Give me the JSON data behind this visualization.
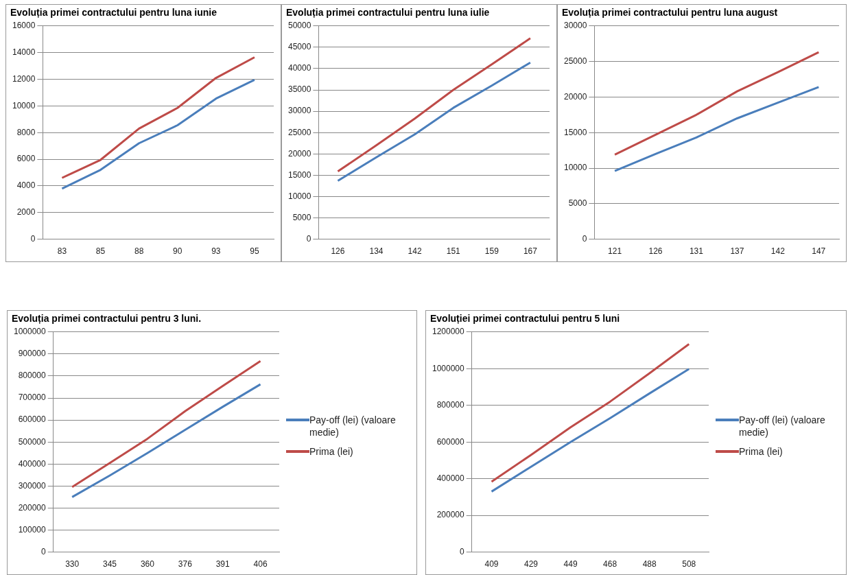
{
  "chart_data": [
    {
      "type": "line",
      "title": "Evoluția primei contractului pentru luna iunie",
      "categories": [
        "83",
        "85",
        "88",
        "90",
        "93",
        "95"
      ],
      "ylim": [
        0,
        16000
      ],
      "yticks": [
        0,
        2000,
        4000,
        6000,
        8000,
        10000,
        12000,
        14000,
        16000
      ],
      "grid": "y",
      "legend": false,
      "series": [
        {
          "color": "#4a7ebb",
          "values": [
            3800,
            5200,
            7200,
            8550,
            10550,
            11950
          ]
        },
        {
          "color": "#be4b48",
          "values": [
            4600,
            5950,
            8300,
            9850,
            12100,
            13650
          ]
        }
      ]
    },
    {
      "type": "line",
      "title": "Evoluția primei contractului pentru luna iulie",
      "categories": [
        "126",
        "134",
        "142",
        "151",
        "159",
        "167"
      ],
      "ylim": [
        0,
        50000
      ],
      "yticks": [
        0,
        5000,
        10000,
        15000,
        20000,
        25000,
        30000,
        35000,
        40000,
        45000,
        50000
      ],
      "grid": "y",
      "legend": false,
      "series": [
        {
          "color": "#4a7ebb",
          "values": [
            13700,
            19200,
            24600,
            30800,
            36000,
            41400
          ]
        },
        {
          "color": "#be4b48",
          "values": [
            15900,
            22000,
            28300,
            35000,
            41000,
            47100
          ]
        }
      ]
    },
    {
      "type": "line",
      "title": "Evoluția primei contractului pentru luna august",
      "categories": [
        "121",
        "126",
        "131",
        "137",
        "142",
        "147"
      ],
      "ylim": [
        0,
        30000
      ],
      "yticks": [
        0,
        5000,
        10000,
        15000,
        20000,
        25000,
        30000
      ],
      "grid": "y",
      "legend": false,
      "series": [
        {
          "color": "#4a7ebb",
          "values": [
            9600,
            12000,
            14300,
            17000,
            19200,
            21400
          ]
        },
        {
          "color": "#be4b48",
          "values": [
            11900,
            14700,
            17500,
            20800,
            23500,
            26300
          ]
        }
      ]
    },
    {
      "type": "line",
      "title": "Evoluția primei contractului pentru 3 luni.",
      "categories": [
        "330",
        "345",
        "360",
        "376",
        "391",
        "406"
      ],
      "ylim": [
        0,
        1000000
      ],
      "yticks": [
        0,
        100000,
        200000,
        300000,
        400000,
        500000,
        600000,
        700000,
        800000,
        900000,
        1000000
      ],
      "grid": "y",
      "legend": "right",
      "series": [
        {
          "name": "Pay-off (lei) (valoare medie)",
          "color": "#4a7ebb",
          "values": [
            250000,
            348000,
            450000,
            555000,
            660000,
            762000
          ]
        },
        {
          "name": "Prima (lei)",
          "color": "#be4b48",
          "values": [
            296000,
            405000,
            515000,
            640000,
            755000,
            868000
          ]
        }
      ]
    },
    {
      "type": "line",
      "title": "Evoluției primei contractului pentru 5 luni",
      "categories": [
        "409",
        "429",
        "449",
        "468",
        "488",
        "508"
      ],
      "ylim": [
        0,
        1200000
      ],
      "yticks": [
        0,
        200000,
        400000,
        600000,
        800000,
        1000000,
        1200000
      ],
      "grid": "y",
      "legend": "right",
      "series": [
        {
          "name": "Pay-off (lei) (valoare medie)",
          "color": "#4a7ebb",
          "values": [
            330000,
            465000,
            600000,
            730000,
            865000,
            998000
          ]
        },
        {
          "name": "Prima (lei)",
          "color": "#be4b48",
          "values": [
            384000,
            530000,
            680000,
            820000,
            975000,
            1134000
          ]
        }
      ]
    }
  ]
}
